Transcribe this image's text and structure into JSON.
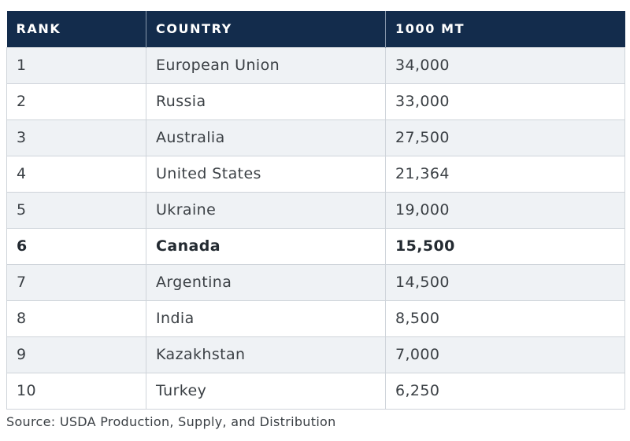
{
  "chart_data": {
    "type": "table",
    "columns": [
      "RANK",
      "COUNTRY",
      "1000 MT"
    ],
    "rows": [
      {
        "rank": "1",
        "country": "European Union",
        "value": "34,000"
      },
      {
        "rank": "2",
        "country": "Russia",
        "value": "33,000"
      },
      {
        "rank": "3",
        "country": "Australia",
        "value": "27,500"
      },
      {
        "rank": "4",
        "country": "United States",
        "value": "21,364"
      },
      {
        "rank": "5",
        "country": "Ukraine",
        "value": "19,000"
      },
      {
        "rank": "6",
        "country": "Canada",
        "value": "15,500",
        "highlight": true
      },
      {
        "rank": "7",
        "country": "Argentina",
        "value": "14,500"
      },
      {
        "rank": "8",
        "country": "India",
        "value": "8,500"
      },
      {
        "rank": "9",
        "country": "Kazakhstan",
        "value": "7,000"
      },
      {
        "rank": "10",
        "country": "Turkey",
        "value": "6,250"
      }
    ],
    "source": "Source: USDA Production, Supply, and Distribution",
    "colors": {
      "header_bg": "#132c4c",
      "header_text": "#ffffff",
      "row_odd_bg": "#eff2f5",
      "row_even_bg": "#ffffff",
      "border": "#cfd4da"
    }
  }
}
